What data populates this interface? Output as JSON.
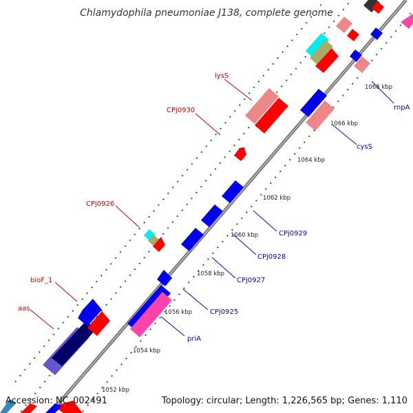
{
  "title": "Chlamydophila pneumoniae J138, complete genome",
  "footer": {
    "accession": "Accession: NC_002491",
    "topology": "Topology: circular; Length: 1,226,565 bp; Genes: 1,110"
  },
  "colors": {
    "forward_label": "#cc0000",
    "reverse_label": "#0000cc",
    "axis": "#888888",
    "tick": "#007700"
  },
  "scale_labels": [
    "1052 kbp",
    "1054 kbp",
    "1056 kbp",
    "1058 kbp",
    "1060 kbp",
    "1062 kbp",
    "1064 kbp",
    "1066 kbp",
    "1068 kbp"
  ],
  "forward_gene_labels": [
    "lysS",
    "CPj0930",
    "CPj0926",
    "bioF_1",
    "aas"
  ],
  "reverse_gene_labels": [
    "rnpA",
    "cysS",
    "CPj0929",
    "CPj0928",
    "CPj0927",
    "CPj0925",
    "priA"
  ]
}
